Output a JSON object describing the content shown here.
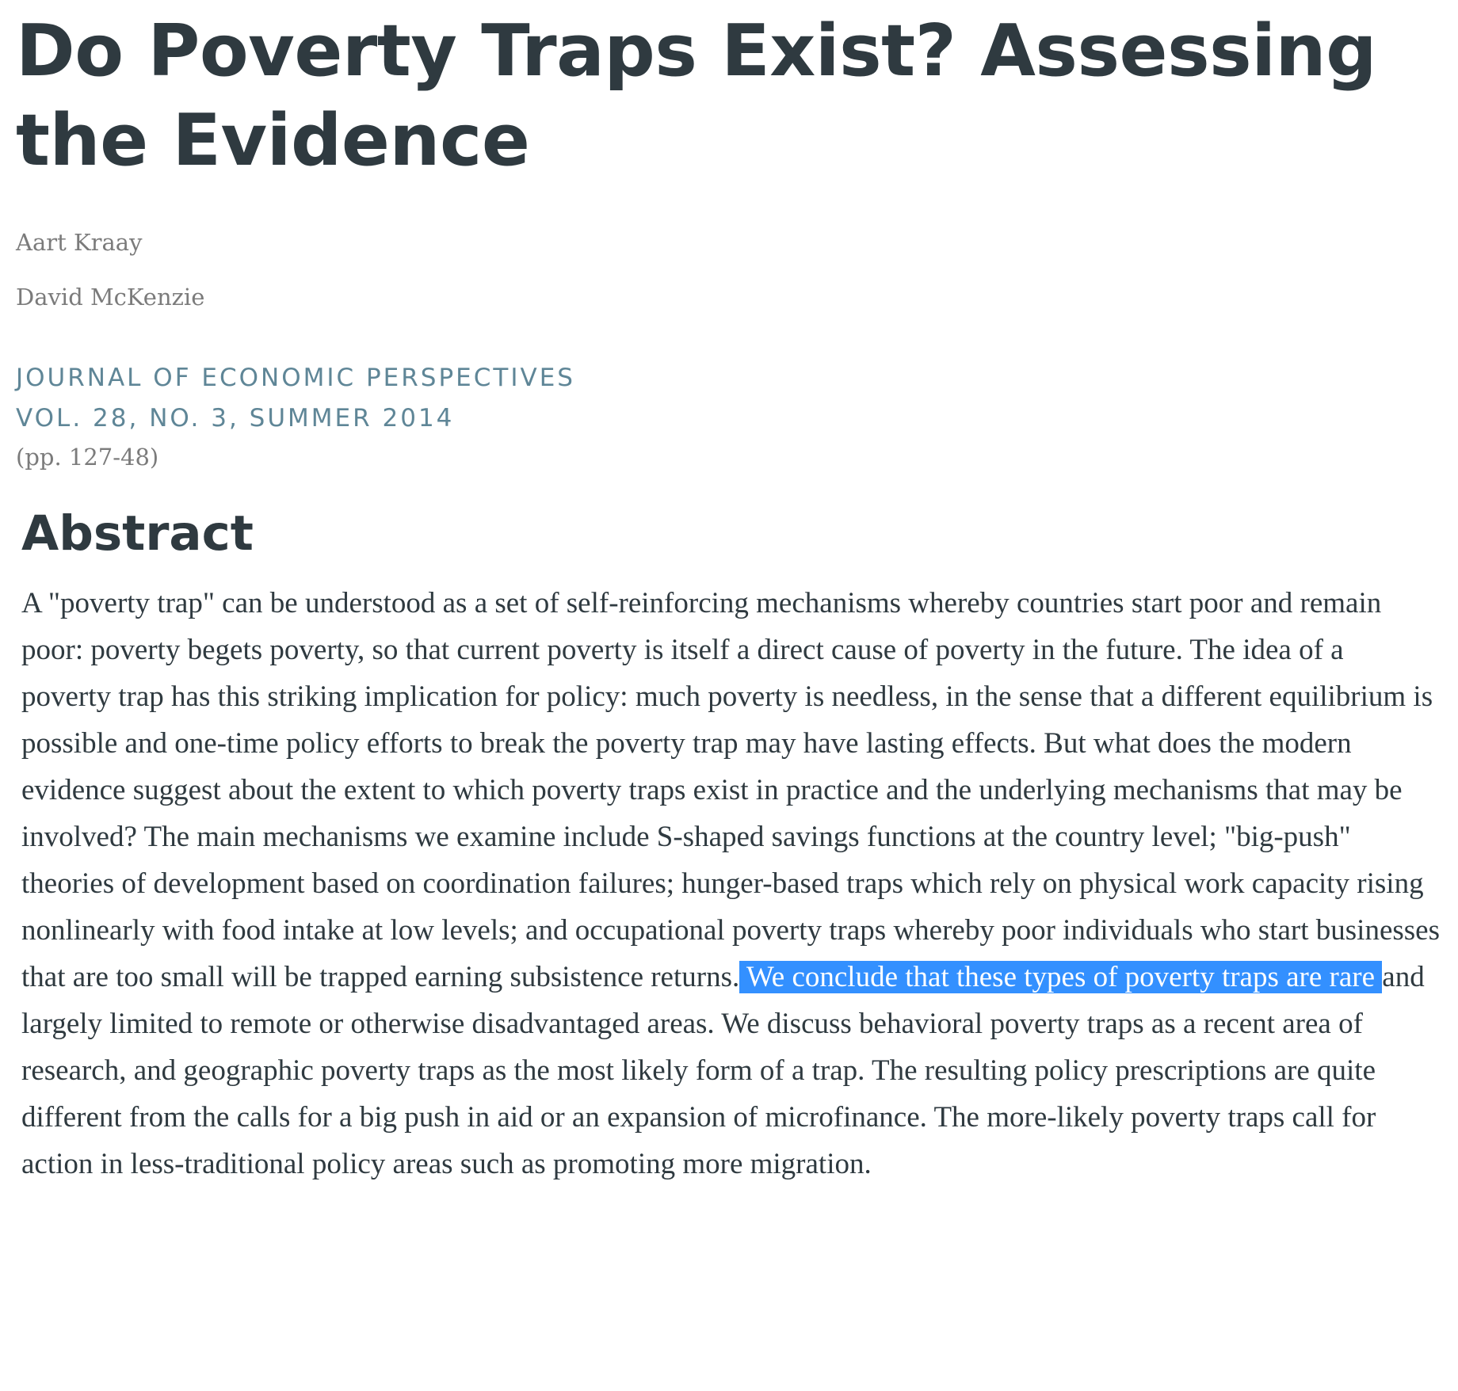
{
  "article": {
    "title": "Do Poverty Traps Exist? Assessing the Evidence",
    "authors": [
      "Aart Kraay",
      "David McKenzie"
    ],
    "journal": "JOURNAL OF ECONOMIC PERSPECTIVES",
    "issue": "VOL. 28, NO. 3, SUMMER 2014",
    "pages": "(pp. 127-48)"
  },
  "abstract": {
    "heading": "Abstract",
    "text_before_selection": "A \"poverty trap\" can be understood as a set of self-reinforcing mechanisms whereby countries start poor and remain poor: poverty begets poverty, so that current poverty is itself a direct cause of poverty in the future. The idea of a poverty trap has this striking implication for policy: much poverty is needless, in the sense that a different equilibrium is possible and one-time policy efforts to break the poverty trap may have lasting effects. But what does the modern evidence suggest about the extent to which poverty traps exist in practice and the underlying mechanisms that may be involved? The main mechanisms we examine include S-shaped savings functions at the country level; \"big-push\" theories of development based on coordination failures; hunger-based traps which rely on physical work capacity rising nonlinearly with food intake at low levels; and occupational poverty traps whereby poor individuals who start businesses that are too small will be trapped earning subsistence returns.",
    "selected_text": " We conclude that these types of poverty traps are rare ",
    "text_after_selection": "and largely limited to remote or otherwise disadvantaged areas. We discuss behavioral poverty traps as a recent area of research, and geographic poverty traps as the most likely form of a trap. The resulting policy prescriptions are quite different from the calls for a big push in aid or an expansion of microfinance. The more-likely poverty traps call for action in less-traditional policy areas such as promoting more migration."
  },
  "colors": {
    "text": "#2f3a40",
    "muted": "#7b7b7b",
    "journal": "#5f8697",
    "selection": "#3390ff"
  }
}
